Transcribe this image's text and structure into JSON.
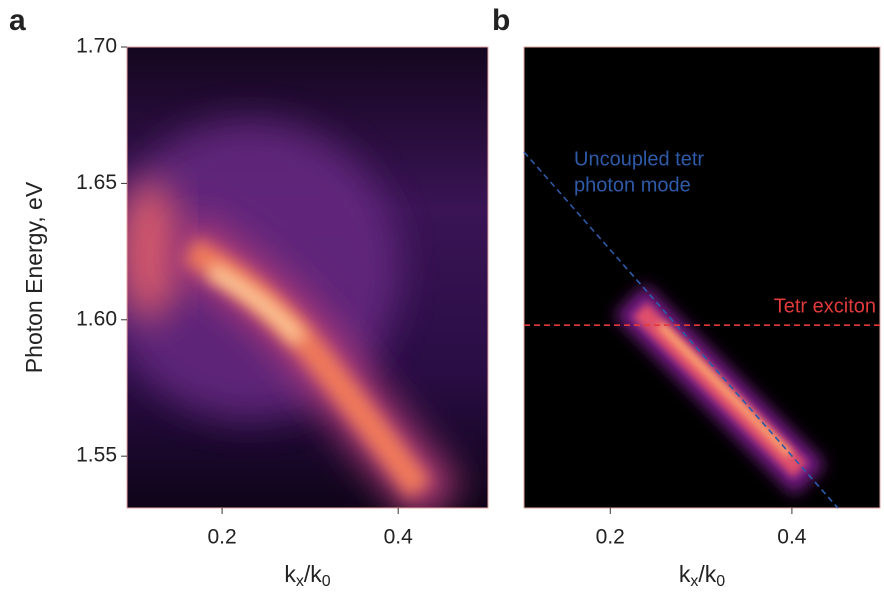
{
  "chart_data": [
    {
      "type": "heatmap",
      "panel_label": "a",
      "x_label": [
        "k",
        "x",
        "/k",
        "0"
      ],
      "y_label": "Photon Energy, eV",
      "xlim": [
        0.092,
        0.502
      ],
      "ylim": [
        1.531,
        1.7
      ],
      "xticks": [
        0.2,
        0.4
      ],
      "yticks": [
        {
          "value": 1.7,
          "label": "1.70"
        },
        1.65,
        {
          "value": 1.6,
          "label": "1.60"
        },
        1.55
      ],
      "axis_color": "#e6a3a3"
    },
    {
      "type": "heatmap",
      "panel_label": "b",
      "x_label": [
        "k",
        "x",
        "/k",
        "0"
      ],
      "xlim": [
        0.105,
        0.497
      ],
      "ylim": [
        1.531,
        1.7
      ],
      "xticks": [
        0.2,
        0.4
      ],
      "axis_color": "#e6a3a3",
      "lines": [
        {
          "name": [
            "Uncoupled tetr",
            "photon mode"
          ],
          "color": "#2e5aa8",
          "x": [
            0.105,
            0.4506
          ],
          "y": [
            1.6615,
            1.531
          ]
        },
        {
          "name": [
            "Tetr exciton"
          ],
          "color": "#e03a3a",
          "x": [
            0.105,
            0.497
          ],
          "y": [
            1.598,
            1.598
          ]
        }
      ]
    }
  ]
}
